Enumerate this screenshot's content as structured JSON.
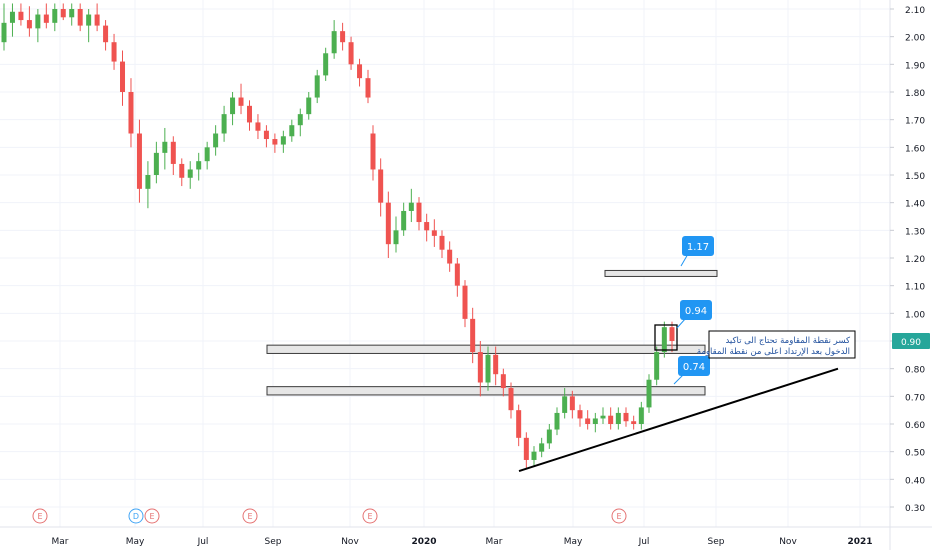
{
  "chart_data": {
    "type": "candlestick",
    "y_axis": {
      "ticks": [
        "2.10",
        "2.00",
        "1.90",
        "1.80",
        "1.70",
        "1.60",
        "1.50",
        "1.40",
        "1.30",
        "1.20",
        "1.10",
        "1.00",
        "0.90",
        "0.80",
        "0.70",
        "0.60",
        "0.50",
        "0.40",
        "0.30"
      ],
      "tick_values": [
        2.1,
        2.0,
        1.9,
        1.8,
        1.7,
        1.6,
        1.5,
        1.4,
        1.3,
        1.2,
        1.1,
        1.0,
        0.9,
        0.8,
        0.7,
        0.6,
        0.5,
        0.4,
        0.3
      ],
      "range": [
        0.24,
        2.13
      ],
      "current_price": "0.90",
      "current_price_color": "#26a69a"
    },
    "x_axis": {
      "ticks": [
        "Mar",
        "May",
        "Jul",
        "Sep",
        "Nov",
        "2020",
        "Mar",
        "May",
        "Jul",
        "Sep",
        "Nov",
        "2021"
      ],
      "bold_ticks": [
        "2020",
        "2021"
      ]
    },
    "candles": [
      [
        1.98,
        2.12,
        1.95,
        2.05
      ],
      [
        2.05,
        2.12,
        2.0,
        2.09
      ],
      [
        2.09,
        2.12,
        2.04,
        2.06
      ],
      [
        2.06,
        2.11,
        2.0,
        2.03
      ],
      [
        2.03,
        2.1,
        1.98,
        2.08
      ],
      [
        2.08,
        2.12,
        2.03,
        2.05
      ],
      [
        2.05,
        2.12,
        2.02,
        2.1
      ],
      [
        2.1,
        2.12,
        2.06,
        2.07
      ],
      [
        2.07,
        2.12,
        2.04,
        2.1
      ],
      [
        2.1,
        2.12,
        2.02,
        2.04
      ],
      [
        2.04,
        2.1,
        1.98,
        2.08
      ],
      [
        2.08,
        2.12,
        2.02,
        2.04
      ],
      [
        2.04,
        2.06,
        1.95,
        1.98
      ],
      [
        1.98,
        2.01,
        1.88,
        1.91
      ],
      [
        1.91,
        1.95,
        1.75,
        1.8
      ],
      [
        1.8,
        1.85,
        1.6,
        1.65
      ],
      [
        1.65,
        1.7,
        1.4,
        1.45
      ],
      [
        1.45,
        1.55,
        1.38,
        1.5
      ],
      [
        1.5,
        1.62,
        1.47,
        1.58
      ],
      [
        1.58,
        1.67,
        1.52,
        1.62
      ],
      [
        1.62,
        1.64,
        1.5,
        1.54
      ],
      [
        1.54,
        1.56,
        1.46,
        1.49
      ],
      [
        1.49,
        1.55,
        1.45,
        1.52
      ],
      [
        1.52,
        1.58,
        1.48,
        1.55
      ],
      [
        1.55,
        1.62,
        1.52,
        1.6
      ],
      [
        1.6,
        1.68,
        1.57,
        1.65
      ],
      [
        1.65,
        1.75,
        1.62,
        1.72
      ],
      [
        1.72,
        1.8,
        1.68,
        1.78
      ],
      [
        1.78,
        1.83,
        1.72,
        1.75
      ],
      [
        1.75,
        1.77,
        1.66,
        1.69
      ],
      [
        1.69,
        1.72,
        1.63,
        1.66
      ],
      [
        1.66,
        1.68,
        1.6,
        1.63
      ],
      [
        1.63,
        1.65,
        1.58,
        1.61
      ],
      [
        1.61,
        1.66,
        1.58,
        1.64
      ],
      [
        1.64,
        1.7,
        1.62,
        1.68
      ],
      [
        1.68,
        1.74,
        1.64,
        1.72
      ],
      [
        1.72,
        1.8,
        1.7,
        1.78
      ],
      [
        1.78,
        1.88,
        1.76,
        1.86
      ],
      [
        1.86,
        1.96,
        1.84,
        1.94
      ],
      [
        1.94,
        2.06,
        1.92,
        2.02
      ],
      [
        2.02,
        2.05,
        1.95,
        1.98
      ],
      [
        1.98,
        2.0,
        1.88,
        1.9
      ],
      [
        1.9,
        1.92,
        1.82,
        1.85
      ],
      [
        1.85,
        1.88,
        1.76,
        1.78
      ],
      [
        1.65,
        1.68,
        1.48,
        1.52
      ],
      [
        1.52,
        1.56,
        1.35,
        1.4
      ],
      [
        1.4,
        1.44,
        1.2,
        1.25
      ],
      [
        1.25,
        1.35,
        1.22,
        1.3
      ],
      [
        1.3,
        1.4,
        1.28,
        1.37
      ],
      [
        1.37,
        1.45,
        1.33,
        1.4
      ],
      [
        1.4,
        1.42,
        1.3,
        1.33
      ],
      [
        1.33,
        1.36,
        1.26,
        1.3
      ],
      [
        1.3,
        1.34,
        1.24,
        1.28
      ],
      [
        1.28,
        1.3,
        1.2,
        1.23
      ],
      [
        1.23,
        1.26,
        1.15,
        1.18
      ],
      [
        1.18,
        1.2,
        1.06,
        1.1
      ],
      [
        1.1,
        1.12,
        0.95,
        0.98
      ],
      [
        0.98,
        1.02,
        0.82,
        0.86
      ],
      [
        0.86,
        0.9,
        0.7,
        0.75
      ],
      [
        0.75,
        0.88,
        0.72,
        0.85
      ],
      [
        0.85,
        0.88,
        0.74,
        0.78
      ],
      [
        0.78,
        0.8,
        0.7,
        0.73
      ],
      [
        0.73,
        0.75,
        0.62,
        0.65
      ],
      [
        0.65,
        0.67,
        0.52,
        0.55
      ],
      [
        0.55,
        0.57,
        0.44,
        0.47
      ],
      [
        0.47,
        0.52,
        0.45,
        0.5
      ],
      [
        0.5,
        0.55,
        0.48,
        0.53
      ],
      [
        0.53,
        0.6,
        0.51,
        0.58
      ],
      [
        0.58,
        0.66,
        0.56,
        0.64
      ],
      [
        0.64,
        0.73,
        0.62,
        0.7
      ],
      [
        0.7,
        0.72,
        0.62,
        0.65
      ],
      [
        0.65,
        0.67,
        0.59,
        0.62
      ],
      [
        0.62,
        0.65,
        0.58,
        0.6
      ],
      [
        0.6,
        0.64,
        0.57,
        0.62
      ],
      [
        0.62,
        0.66,
        0.6,
        0.63
      ],
      [
        0.63,
        0.66,
        0.58,
        0.6
      ],
      [
        0.6,
        0.66,
        0.58,
        0.64
      ],
      [
        0.64,
        0.66,
        0.59,
        0.61
      ],
      [
        0.61,
        0.63,
        0.58,
        0.6
      ],
      [
        0.6,
        0.68,
        0.58,
        0.66
      ],
      [
        0.66,
        0.78,
        0.64,
        0.76
      ],
      [
        0.76,
        0.88,
        0.74,
        0.86
      ],
      [
        0.86,
        0.97,
        0.84,
        0.95
      ],
      [
        0.95,
        0.97,
        0.86,
        0.9
      ]
    ],
    "gap_after_index": 43,
    "resistance_zones": [
      {
        "low": 0.855,
        "high": 0.885
      },
      {
        "low": 0.705,
        "high": 0.735
      },
      {
        "low": 1.14,
        "high": 1.155
      }
    ],
    "trendline": {
      "from": [
        0.43
      ],
      "to": [
        0.8
      ]
    },
    "price_labels": [
      "1.17",
      "0.94",
      "0.74"
    ],
    "annotation": {
      "line1": "كسر نقطة المقاومة تحتاج الى تاكيد",
      "line2": "الدخول بعد الإرتداد اعلى من نقطة المقاومة"
    },
    "event_markers": [
      "E",
      "D",
      "E",
      "E",
      "E",
      "E"
    ],
    "colors": {
      "up": "#4caf50",
      "down": "#ef5350",
      "label": "#2196f3",
      "event": "#e57373",
      "dividend": "#42a5f5"
    }
  }
}
